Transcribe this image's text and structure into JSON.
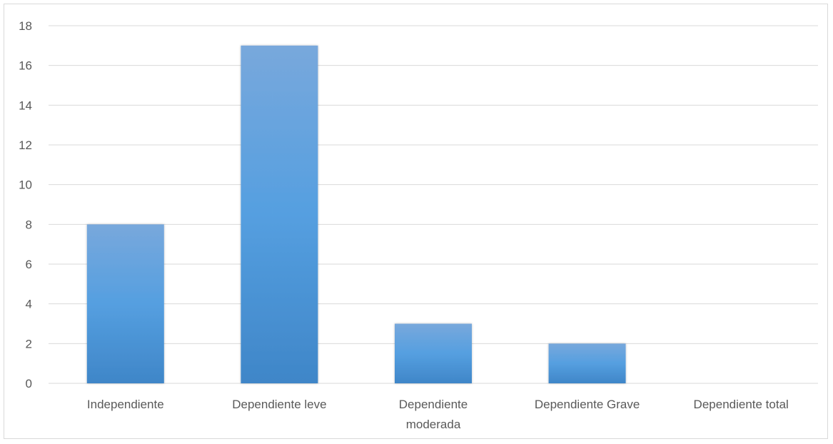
{
  "chart_data": {
    "type": "bar",
    "categories": [
      [
        "Independiente"
      ],
      [
        "Dependiente leve"
      ],
      [
        "Dependiente",
        "moderada"
      ],
      [
        "Dependiente Grave"
      ],
      [
        "Dependiente total"
      ]
    ],
    "category_text": [
      "Independiente",
      "Dependiente leve",
      "Dependiente moderada",
      "Dependiente Grave",
      "Dependiente total"
    ],
    "values": [
      8,
      17,
      3,
      2,
      0
    ],
    "title": "",
    "xlabel": "",
    "ylabel": "",
    "ylim": [
      0,
      18
    ],
    "yticks": [
      0,
      2,
      4,
      6,
      8,
      10,
      12,
      14,
      16,
      18
    ],
    "grid": true,
    "legend": "none",
    "colors": {
      "bar_top": "#78a8dc",
      "bar_mid": "#559fe0",
      "bar_bottom": "#3f86c8",
      "grid": "#d9d9d9",
      "text": "#595959"
    }
  }
}
